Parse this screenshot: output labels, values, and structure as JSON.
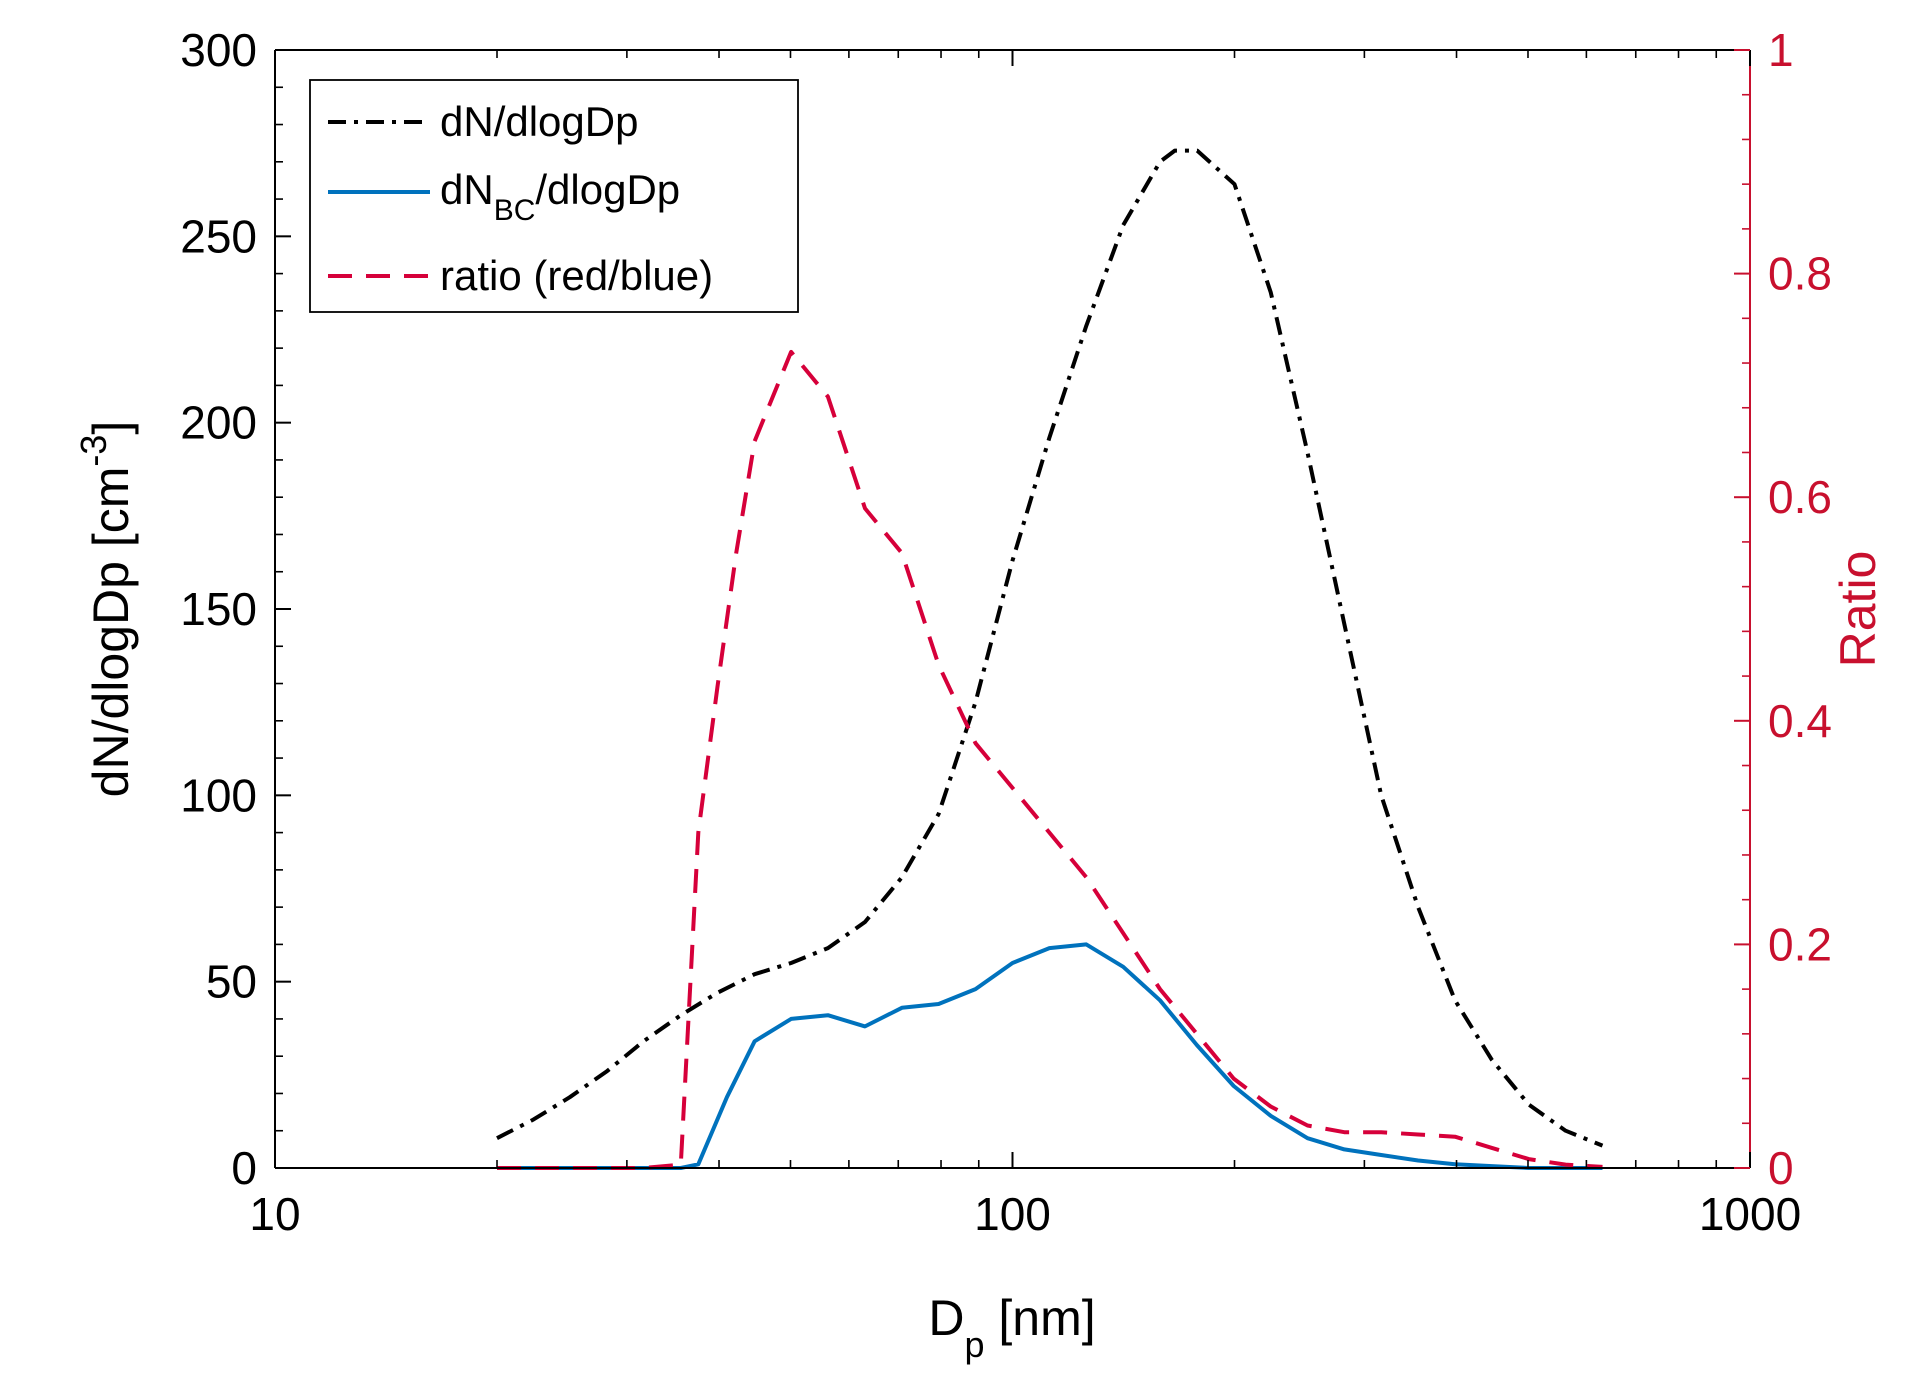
{
  "chart_data": {
    "type": "line",
    "x_scale": "log",
    "xlabel": {
      "main": "D",
      "sub": "p",
      "rest": " [nm]"
    },
    "ylabel_left": {
      "main": "dN/dlogDp [cm",
      "sup": "-3",
      "rest": "]"
    },
    "ylabel_right": "Ratio",
    "xlim": [
      10,
      1000
    ],
    "ylim_left": [
      0,
      300
    ],
    "ylim_right": [
      0,
      1
    ],
    "x_ticks": [
      10,
      100,
      1000
    ],
    "x_tick_labels": [
      "10",
      "100",
      "1000"
    ],
    "y_left_ticks": [
      0,
      50,
      100,
      150,
      200,
      250,
      300
    ],
    "y_left_tick_labels": [
      "0",
      "50",
      "100",
      "150",
      "200",
      "250",
      "300"
    ],
    "y_right_ticks": [
      0,
      0.2,
      0.4,
      0.6,
      0.8,
      1
    ],
    "y_right_tick_labels": [
      "0",
      "0.2",
      "0.4",
      "0.6",
      "0.8",
      "1"
    ],
    "legend_position": "top-left",
    "colors": {
      "total": "#000000",
      "bc": "#0072BD",
      "ratio": "#D6003A",
      "right_axis": "#C8102E"
    },
    "series": [
      {
        "name": "dN/dlogDp",
        "axis": "left",
        "style": "dashdot",
        "x": [
          20,
          22.4,
          25.1,
          28.2,
          31.6,
          35.5,
          39.8,
          44.7,
          50.1,
          56.2,
          63.1,
          70.8,
          79.4,
          89.1,
          100,
          112.2,
          125.9,
          141.3,
          158.5,
          166,
          178,
          200,
          223.9,
          251.2,
          281.8,
          316.2,
          354.8,
          398.1,
          446.7,
          501.2,
          562.3,
          631
        ],
        "values": [
          8,
          13,
          19,
          26,
          34,
          41,
          47,
          52,
          55,
          59,
          66,
          78,
          95,
          125,
          163,
          196,
          226,
          253,
          270,
          273,
          273,
          264,
          235,
          192,
          146,
          100,
          70,
          45,
          29,
          17,
          10,
          6
        ]
      },
      {
        "name": "dN_BC/dlogDp",
        "legend_main": "dN",
        "legend_sub": "BC",
        "legend_rest": "/dlogDp",
        "axis": "left",
        "style": "solid",
        "x": [
          20,
          22.4,
          25.1,
          28.2,
          31.6,
          35.5,
          37.5,
          41,
          44.7,
          50.1,
          56.2,
          63.1,
          70.8,
          79.4,
          89.1,
          100,
          112.2,
          125.9,
          141.3,
          158.5,
          177.8,
          199.5,
          223.9,
          251.2,
          281.8,
          316.2,
          354.8,
          398.1,
          446.7,
          501.2,
          562.3,
          631
        ],
        "values": [
          0,
          0,
          0,
          0,
          0,
          0,
          1,
          19,
          34,
          40,
          41,
          38,
          43,
          44,
          48,
          55,
          59,
          60,
          54,
          45,
          33,
          22,
          14,
          8,
          5,
          3.5,
          2,
          1,
          0.5,
          0,
          0,
          0
        ]
      },
      {
        "name": "ratio (red/blue)",
        "axis": "right",
        "style": "dashed",
        "x": [
          20,
          22.4,
          25.1,
          28.2,
          31.6,
          35.5,
          37.5,
          39.8,
          42.2,
          44.7,
          50.1,
          56.2,
          63.1,
          70.8,
          79.4,
          89.1,
          100,
          112.2,
          125.9,
          141.3,
          158.5,
          177.8,
          199.5,
          223.9,
          251.2,
          281.8,
          316.2,
          354.8,
          398.1,
          446.7,
          501.2,
          562.3,
          631
        ],
        "values": [
          0,
          0,
          0,
          0,
          0,
          0.003,
          0.3,
          0.43,
          0.55,
          0.65,
          0.73,
          0.69,
          0.59,
          0.55,
          0.45,
          0.38,
          0.34,
          0.3,
          0.26,
          0.21,
          0.16,
          0.12,
          0.08,
          0.055,
          0.038,
          0.032,
          0.032,
          0.03,
          0.028,
          0.018,
          0.008,
          0.003,
          0.001
        ]
      }
    ]
  }
}
